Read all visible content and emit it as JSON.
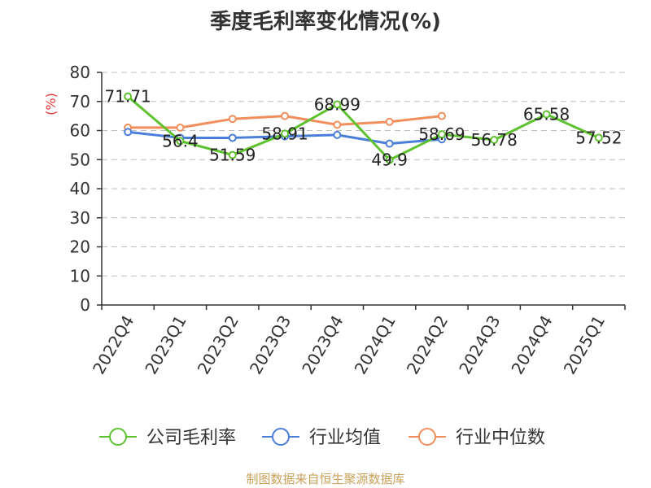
{
  "chart_data": {
    "type": "line",
    "title": "季度毛利率变化情况(%)",
    "ylabel": "(%)",
    "ylim": [
      0,
      80
    ],
    "yticks": [
      0,
      10,
      20,
      30,
      40,
      50,
      60,
      70,
      80
    ],
    "categories": [
      "2022Q4",
      "2023Q1",
      "2023Q2",
      "2023Q3",
      "2023Q4",
      "2024Q1",
      "2024Q2",
      "2024Q3",
      "2024Q4",
      "2025Q1"
    ],
    "grid": true,
    "legend_position": "bottom",
    "series": [
      {
        "name": "公司毛利率",
        "color": "#5ec22f",
        "values": [
          71.71,
          56.4,
          51.59,
          58.91,
          68.99,
          49.9,
          58.69,
          56.78,
          65.58,
          57.52
        ],
        "labels": [
          "71.71",
          "56.4",
          "51.59",
          "58.91",
          "68.99",
          "49.9",
          "58.69",
          "56.78",
          "65.58",
          "57.52"
        ]
      },
      {
        "name": "行业均值",
        "color": "#4a7fd9",
        "values": [
          59.5,
          57.5,
          57.5,
          58.0,
          58.5,
          55.5,
          57.0,
          null,
          null,
          null
        ]
      },
      {
        "name": "行业中位数",
        "color": "#f28e5c",
        "values": [
          61.0,
          61.0,
          64.0,
          65.0,
          62.0,
          63.0,
          65.0,
          null,
          null,
          null
        ]
      }
    ]
  },
  "source": "制图数据来自恒生聚源数据库"
}
